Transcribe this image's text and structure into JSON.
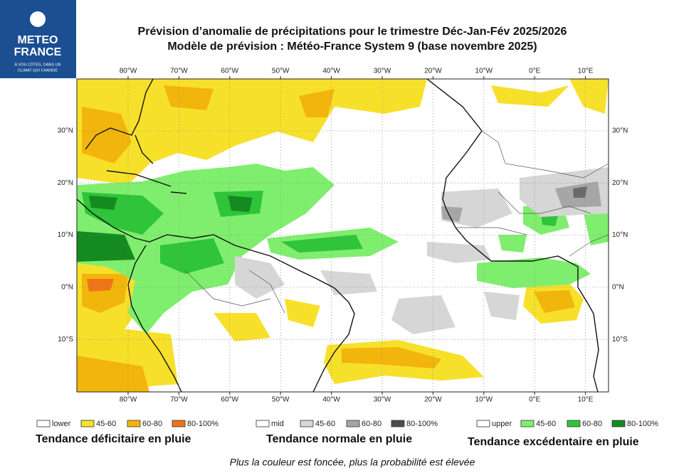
{
  "logo": {
    "line1": "METEO",
    "line2": "FRANCE",
    "tagline1": "À VOS CÔTÉS, DANS UN",
    "tagline2": "CLIMAT QUI CHANGE"
  },
  "title": {
    "line1": "Prévision d’anomalie de précipitations pour le trimestre Déc-Jan-Fév 2025/2026",
    "line2": "Modèle de prévision : Météo-France System 9 (base novembre 2025)"
  },
  "map": {
    "lon_labels": [
      "80°W",
      "70°W",
      "60°W",
      "50°W",
      "40°W",
      "30°W",
      "20°W",
      "10°W",
      "0°E",
      "10°E"
    ],
    "lat_labels": [
      "30°N",
      "20°N",
      "10°N",
      "0°N",
      "10°S"
    ]
  },
  "legend": [
    {
      "caption": "Tendance déficitaire en pluie",
      "items": [
        {
          "label": "lower",
          "color": "#ffffff"
        },
        {
          "label": "45-60",
          "color": "#f7e02a"
        },
        {
          "label": "60-80",
          "color": "#f2b50c"
        },
        {
          "label": "80-100%",
          "color": "#f07318"
        }
      ]
    },
    {
      "caption": "Tendance normale en pluie",
      "items": [
        {
          "label": "mid",
          "color": "#ffffff"
        },
        {
          "label": "45-60",
          "color": "#d6d6d6"
        },
        {
          "label": "60-80",
          "color": "#a6a6a6"
        },
        {
          "label": "80-100%",
          "color": "#4d4d4d"
        }
      ]
    },
    {
      "caption": "Tendance excédentaire en pluie",
      "items": [
        {
          "label": "upper",
          "color": "#ffffff"
        },
        {
          "label": "45-60",
          "color": "#7fee6e"
        },
        {
          "label": "60-80",
          "color": "#2fc43a"
        },
        {
          "label": "80-100%",
          "color": "#148a1f"
        }
      ]
    }
  ],
  "footnote": "Plus la couleur est foncée, plus la probabilité est élevée"
}
